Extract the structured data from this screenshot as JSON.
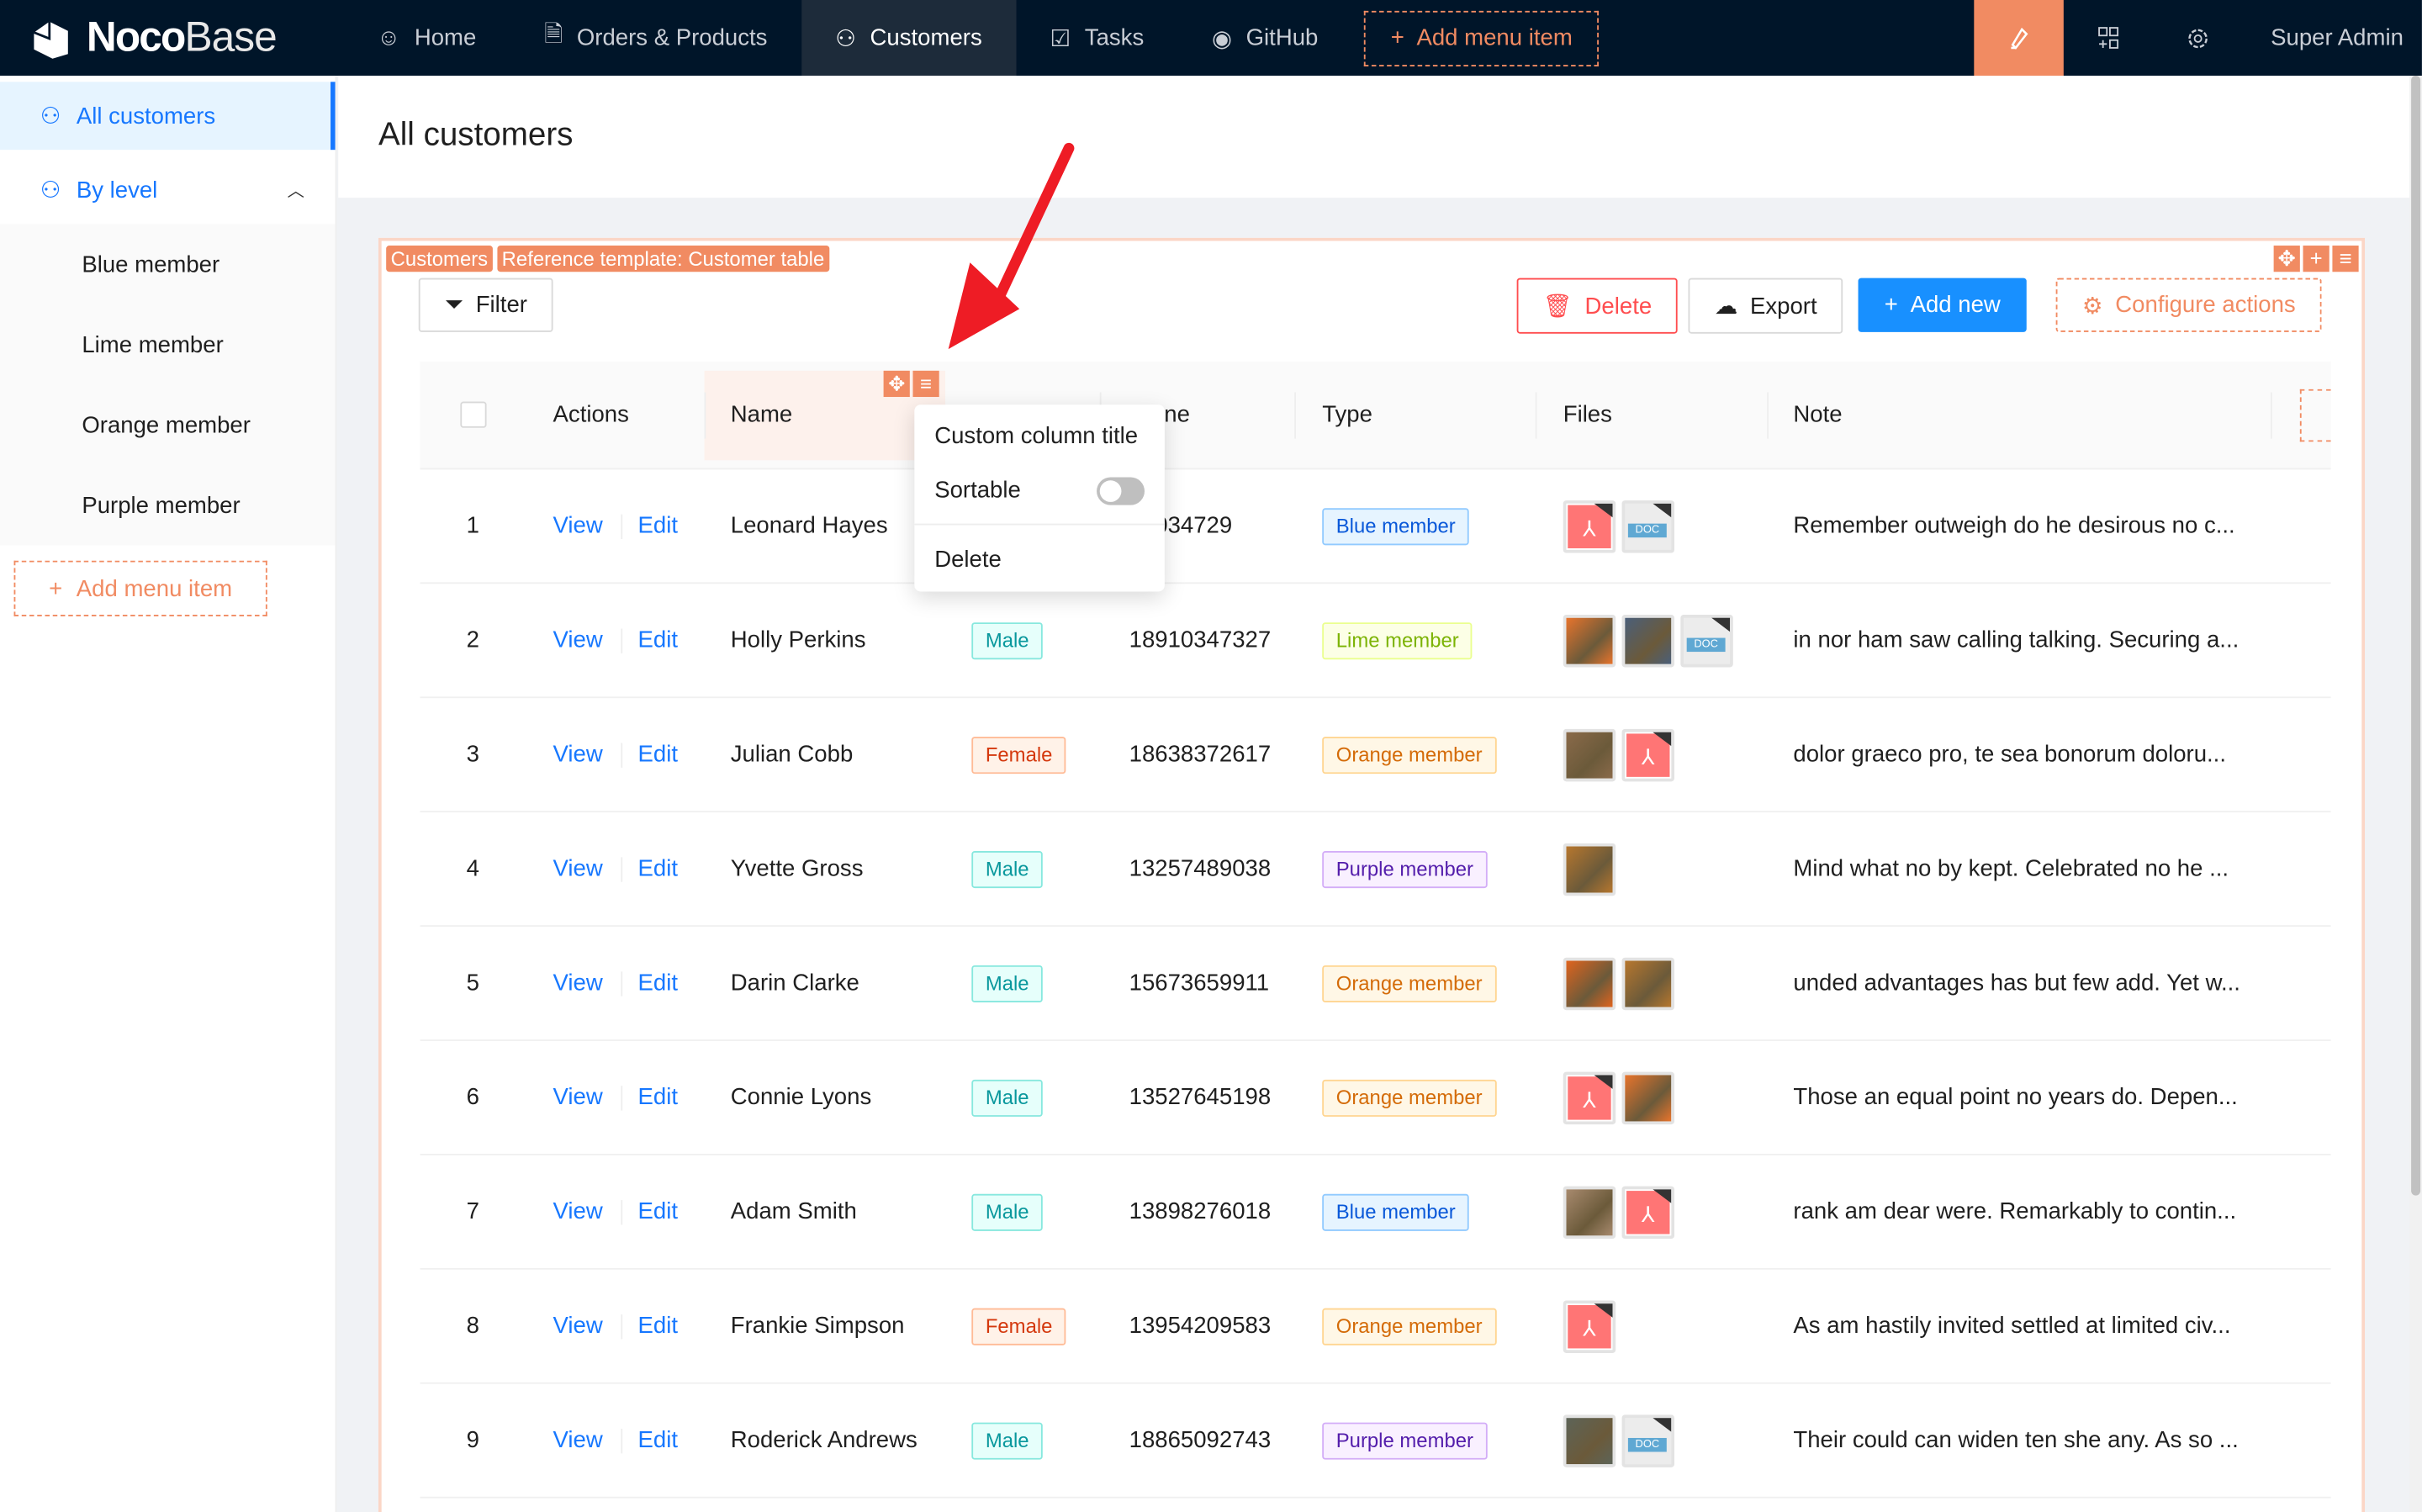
{
  "app": {
    "logo_bold": "Noco",
    "logo_light": "Base",
    "user": "Super Admin"
  },
  "colors": {
    "topbar": "#001529",
    "accent": "#f18b62",
    "primary": "#1890ff",
    "danger": "#ff4d4f"
  },
  "nav": [
    {
      "label": "Home",
      "icon": "smile-icon"
    },
    {
      "label": "Orders & Products",
      "icon": "file-icon"
    },
    {
      "label": "Customers",
      "icon": "users-icon",
      "active": true
    },
    {
      "label": "Tasks",
      "icon": "checkbox-icon"
    },
    {
      "label": "GitHub",
      "icon": "github-icon"
    }
  ],
  "nav_add": "Add menu item",
  "sidebar": {
    "all": "All customers",
    "by_level": "By level",
    "levels": [
      "Blue member",
      "Lime member",
      "Orange member",
      "Purple member"
    ],
    "add": "Add menu item"
  },
  "page": {
    "title": "All customers"
  },
  "block": {
    "tag_collection": "Customers",
    "tag_template": "Reference template: Customer table",
    "filter": "Filter",
    "delete": "Delete",
    "export": "Export",
    "add_new": "Add new",
    "configure": "Configure actions"
  },
  "columns": {
    "actions": "Actions",
    "name": "Name",
    "phone": "Phone",
    "type": "Type",
    "files": "Files",
    "note": "Note"
  },
  "row_actions": {
    "view": "View",
    "edit": "Edit"
  },
  "popup": {
    "custom_title": "Custom column title",
    "sortable": "Sortable",
    "sortable_on": false,
    "delete": "Delete"
  },
  "member_colors": {
    "Blue member": {
      "fg": "#0958d9",
      "bg": "#e6f4ff",
      "bd": "#91caff"
    },
    "Lime member": {
      "fg": "#7cb305",
      "bg": "#fcffe6",
      "bd": "#eaff8f"
    },
    "Orange member": {
      "fg": "#d46b08",
      "bg": "#fff7e6",
      "bd": "#ffd591"
    },
    "Purple member": {
      "fg": "#531dab",
      "bg": "#f9f0ff",
      "bd": "#d3adf7"
    }
  },
  "gender_colors": {
    "Male": {
      "fg": "#08979c",
      "bg": "#e6fffb",
      "bd": "#87e8de"
    },
    "Female": {
      "fg": "#d4380d",
      "bg": "#fff2e8",
      "bd": "#ffbb96"
    }
  },
  "rows": [
    {
      "no": "1",
      "name": "Leonard Hayes",
      "gender": "",
      "phone": "98034729",
      "type": "Blue member",
      "files": [
        "pdf",
        "doc"
      ],
      "note": "Remember outweigh do he desirous no c..."
    },
    {
      "no": "2",
      "name": "Holly Perkins",
      "gender": "Male",
      "phone": "18910347327",
      "type": "Lime member",
      "files": [
        "img:#e8742c",
        "img:#4a5f7a",
        "doc"
      ],
      "note": "in nor ham saw calling talking. Securing a..."
    },
    {
      "no": "3",
      "name": "Julian Cobb",
      "gender": "Female",
      "phone": "18638372617",
      "type": "Orange member",
      "files": [
        "img:#8a6a4a",
        "pdf"
      ],
      "note": "dolor graeco pro, te sea bonorum doloru..."
    },
    {
      "no": "4",
      "name": "Yvette Gross",
      "gender": "Male",
      "phone": "13257489038",
      "type": "Purple member",
      "files": [
        "img:#b7772e"
      ],
      "note": "Mind what no by kept. Celebrated no he ..."
    },
    {
      "no": "5",
      "name": "Darin Clarke",
      "gender": "Male",
      "phone": "15673659911",
      "type": "Orange member",
      "files": [
        "img:#e0641e",
        "img:#b7772e"
      ],
      "note": "unded advantages has but few add. Yet w..."
    },
    {
      "no": "6",
      "name": "Connie Lyons",
      "gender": "Male",
      "phone": "13527645198",
      "type": "Orange member",
      "files": [
        "pdf",
        "img:#e8742c"
      ],
      "note": "Those an equal point no years do. Depen..."
    },
    {
      "no": "7",
      "name": "Adam Smith",
      "gender": "Male",
      "phone": "13898276018",
      "type": "Blue member",
      "files": [
        "img:#a88a6e",
        "pdf"
      ],
      "note": "rank am dear were. Remarkably to contin..."
    },
    {
      "no": "8",
      "name": "Frankie Simpson",
      "gender": "Female",
      "phone": "13954209583",
      "type": "Orange member",
      "files": [
        "pdf"
      ],
      "note": "As am hastily invited settled at limited civ..."
    },
    {
      "no": "9",
      "name": "Roderick Andrews",
      "gender": "Male",
      "phone": "18865092743",
      "type": "Purple member",
      "files": [
        "img:#5d6458",
        "doc"
      ],
      "note": "Their could can widen ten she any. As so ..."
    }
  ]
}
